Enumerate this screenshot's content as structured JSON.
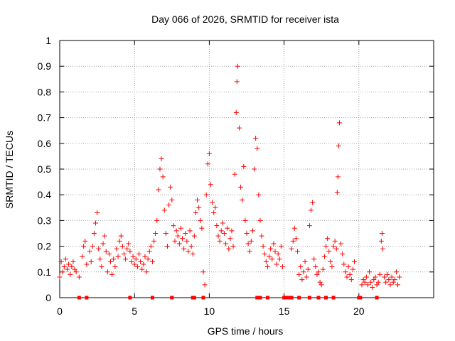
{
  "chart_data": {
    "type": "scatter",
    "title": "Day 066 of 2026, SRMTID for receiver ista",
    "xlabel": "GPS time / hours",
    "ylabel": "SRMTID / TECUs",
    "xlim": [
      0,
      25
    ],
    "ylim": [
      0,
      1
    ],
    "xticks": [
      0,
      5,
      10,
      15,
      20
    ],
    "xtick_labels": [
      "0",
      "5",
      "10",
      "15",
      "20"
    ],
    "yticks": [
      0,
      0.1,
      0.2,
      0.3,
      0.4,
      0.5,
      0.6,
      0.7,
      0.8,
      0.9,
      1
    ],
    "ytick_labels": [
      "0",
      "0.1",
      "0.2",
      "0.3",
      "0.4",
      "0.5",
      "0.6",
      "0.7",
      "0.8",
      "0.9",
      "1"
    ],
    "grid": true,
    "marker": "+",
    "series_color": "#ff0000",
    "series": [
      {
        "name": "SRMTID",
        "points": [
          [
            0.0,
            0.08
          ],
          [
            0.1,
            0.14
          ],
          [
            0.2,
            0.1
          ],
          [
            0.3,
            0.12
          ],
          [
            0.4,
            0.15
          ],
          [
            0.5,
            0.11
          ],
          [
            0.6,
            0.13
          ],
          [
            0.7,
            0.09
          ],
          [
            0.8,
            0.12
          ],
          [
            0.9,
            0.14
          ],
          [
            1.0,
            0.11
          ],
          [
            1.1,
            0.1
          ],
          [
            1.3,
            0.08
          ],
          [
            1.5,
            0.16
          ],
          [
            1.6,
            0.2
          ],
          [
            1.7,
            0.22
          ],
          [
            1.8,
            0.13
          ],
          [
            2.0,
            0.18
          ],
          [
            2.1,
            0.14
          ],
          [
            2.2,
            0.2
          ],
          [
            2.3,
            0.25
          ],
          [
            2.4,
            0.29
          ],
          [
            2.5,
            0.33
          ],
          [
            2.6,
            0.19
          ],
          [
            2.7,
            0.15
          ],
          [
            2.8,
            0.12
          ],
          [
            2.9,
            0.21
          ],
          [
            3.0,
            0.24
          ],
          [
            3.1,
            0.18
          ],
          [
            3.2,
            0.1
          ],
          [
            3.3,
            0.17
          ],
          [
            3.4,
            0.14
          ],
          [
            3.5,
            0.09
          ],
          [
            3.6,
            0.15
          ],
          [
            3.7,
            0.12
          ],
          [
            3.8,
            0.19
          ],
          [
            3.9,
            0.16
          ],
          [
            4.0,
            0.22
          ],
          [
            4.1,
            0.24
          ],
          [
            4.2,
            0.2
          ],
          [
            4.3,
            0.17
          ],
          [
            4.4,
            0.15
          ],
          [
            4.5,
            0.19
          ],
          [
            4.6,
            0.21
          ],
          [
            4.7,
            0.18
          ],
          [
            4.8,
            0.14
          ],
          [
            4.9,
            0.16
          ],
          [
            5.0,
            0.13
          ],
          [
            5.1,
            0.15
          ],
          [
            5.2,
            0.12
          ],
          [
            5.3,
            0.17
          ],
          [
            5.4,
            0.14
          ],
          [
            5.5,
            0.11
          ],
          [
            5.6,
            0.13
          ],
          [
            5.7,
            0.16
          ],
          [
            5.8,
            0.1
          ],
          [
            5.9,
            0.15
          ],
          [
            6.0,
            0.18
          ],
          [
            6.1,
            0.2
          ],
          [
            6.2,
            0.14
          ],
          [
            6.3,
            0.22
          ],
          [
            6.4,
            0.25
          ],
          [
            6.5,
            0.3
          ],
          [
            6.6,
            0.42
          ],
          [
            6.7,
            0.5
          ],
          [
            6.8,
            0.54
          ],
          [
            6.9,
            0.47
          ],
          [
            7.0,
            0.34
          ],
          [
            7.1,
            0.25
          ],
          [
            7.2,
            0.2
          ],
          [
            7.3,
            0.36
          ],
          [
            7.4,
            0.43
          ],
          [
            7.5,
            0.38
          ],
          [
            7.6,
            0.28
          ],
          [
            7.7,
            0.22
          ],
          [
            7.8,
            0.26
          ],
          [
            7.9,
            0.24
          ],
          [
            8.0,
            0.21
          ],
          [
            8.1,
            0.27
          ],
          [
            8.2,
            0.23
          ],
          [
            8.3,
            0.19
          ],
          [
            8.4,
            0.25
          ],
          [
            8.5,
            0.22
          ],
          [
            8.6,
            0.18
          ],
          [
            8.7,
            0.26
          ],
          [
            8.8,
            0.2
          ],
          [
            8.9,
            0.17
          ],
          [
            9.0,
            0.24
          ],
          [
            9.1,
            0.33
          ],
          [
            9.2,
            0.38
          ],
          [
            9.3,
            0.35
          ],
          [
            9.4,
            0.3
          ],
          [
            9.5,
            0.27
          ],
          [
            9.6,
            0.1
          ],
          [
            9.7,
            0.05
          ],
          [
            9.8,
            0.4
          ],
          [
            9.9,
            0.52
          ],
          [
            10.0,
            0.56
          ],
          [
            10.1,
            0.44
          ],
          [
            10.2,
            0.37
          ],
          [
            10.3,
            0.33
          ],
          [
            10.4,
            0.35
          ],
          [
            10.5,
            0.28
          ],
          [
            10.6,
            0.24
          ],
          [
            10.7,
            0.22
          ],
          [
            10.8,
            0.26
          ],
          [
            10.9,
            0.29
          ],
          [
            11.0,
            0.25
          ],
          [
            11.1,
            0.21
          ],
          [
            11.2,
            0.27
          ],
          [
            11.3,
            0.19
          ],
          [
            11.4,
            0.23
          ],
          [
            11.5,
            0.26
          ],
          [
            11.6,
            0.2
          ],
          [
            11.7,
            0.48
          ],
          [
            11.8,
            0.72
          ],
          [
            11.85,
            0.84
          ],
          [
            11.9,
            0.9
          ],
          [
            12.0,
            0.66
          ],
          [
            12.1,
            0.43
          ],
          [
            12.2,
            0.38
          ],
          [
            12.3,
            0.51
          ],
          [
            12.4,
            0.3
          ],
          [
            12.5,
            0.25
          ],
          [
            12.6,
            0.21
          ],
          [
            12.7,
            0.18
          ],
          [
            12.8,
            0.22
          ],
          [
            12.9,
            0.26
          ],
          [
            13.0,
            0.5
          ],
          [
            13.1,
            0.62
          ],
          [
            13.2,
            0.58
          ],
          [
            13.3,
            0.4
          ],
          [
            13.4,
            0.3
          ],
          [
            13.5,
            0.24
          ],
          [
            13.6,
            0.2
          ],
          [
            13.7,
            0.17
          ],
          [
            13.8,
            0.14
          ],
          [
            13.9,
            0.12
          ],
          [
            14.0,
            0.16
          ],
          [
            14.1,
            0.19
          ],
          [
            14.2,
            0.15
          ],
          [
            14.3,
            0.21
          ],
          [
            14.4,
            0.18
          ],
          [
            14.5,
            0.13
          ],
          [
            14.6,
            0.17
          ],
          [
            14.7,
            0.15
          ],
          [
            14.8,
            0.2
          ],
          [
            14.9,
            0.12
          ],
          [
            15.5,
            0.19
          ],
          [
            15.6,
            0.22
          ],
          [
            15.7,
            0.27
          ],
          [
            15.8,
            0.23
          ],
          [
            15.9,
            0.18
          ],
          [
            16.0,
            0.09
          ],
          [
            16.1,
            0.12
          ],
          [
            16.2,
            0.07
          ],
          [
            16.3,
            0.1
          ],
          [
            16.4,
            0.14
          ],
          [
            16.5,
            0.08
          ],
          [
            16.6,
            0.11
          ],
          [
            16.7,
            0.28
          ],
          [
            16.8,
            0.34
          ],
          [
            16.9,
            0.37
          ],
          [
            17.0,
            0.15
          ],
          [
            17.1,
            0.12
          ],
          [
            17.2,
            0.09
          ],
          [
            17.3,
            0.1
          ],
          [
            17.4,
            0.06
          ],
          [
            17.5,
            0.05
          ],
          [
            17.6,
            0.11
          ],
          [
            17.7,
            0.16
          ],
          [
            17.8,
            0.2
          ],
          [
            17.9,
            0.23
          ],
          [
            18.0,
            0.18
          ],
          [
            18.1,
            0.14
          ],
          [
            18.2,
            0.12
          ],
          [
            18.3,
            0.2
          ],
          [
            18.4,
            0.22
          ],
          [
            18.5,
            0.19
          ],
          [
            18.55,
            0.41
          ],
          [
            18.6,
            0.47
          ],
          [
            18.65,
            0.59
          ],
          [
            18.7,
            0.68
          ],
          [
            18.8,
            0.21
          ],
          [
            18.9,
            0.17
          ],
          [
            19.0,
            0.13
          ],
          [
            19.1,
            0.1
          ],
          [
            19.2,
            0.08
          ],
          [
            19.3,
            0.12
          ],
          [
            19.4,
            0.09
          ],
          [
            19.5,
            0.07
          ],
          [
            19.6,
            0.11
          ],
          [
            19.7,
            0.14
          ],
          [
            20.2,
            0.05
          ],
          [
            20.3,
            0.07
          ],
          [
            20.4,
            0.06
          ],
          [
            20.5,
            0.08
          ],
          [
            20.6,
            0.05
          ],
          [
            20.7,
            0.1
          ],
          [
            20.8,
            0.06
          ],
          [
            20.9,
            0.04
          ],
          [
            21.0,
            0.07
          ],
          [
            21.1,
            0.08
          ],
          [
            21.2,
            0.05
          ],
          [
            21.3,
            0.06
          ],
          [
            21.4,
            0.09
          ],
          [
            21.5,
            0.22
          ],
          [
            21.55,
            0.25
          ],
          [
            21.6,
            0.19
          ],
          [
            21.7,
            0.08
          ],
          [
            21.8,
            0.06
          ],
          [
            21.9,
            0.09
          ],
          [
            22.0,
            0.07
          ],
          [
            22.1,
            0.05
          ],
          [
            22.2,
            0.08
          ],
          [
            22.3,
            0.06
          ],
          [
            22.4,
            0.07
          ],
          [
            22.5,
            0.1
          ],
          [
            22.6,
            0.05
          ],
          [
            22.7,
            0.08
          ]
        ]
      }
    ],
    "baseline_marks_x": [
      1.3,
      1.8,
      4.7,
      6.2,
      7.5,
      8.9,
      9.0,
      9.6,
      13.2,
      13.4,
      13.9,
      15.0,
      15.1,
      15.2,
      15.3,
      15.5,
      16.0,
      16.7,
      17.3,
      17.8,
      18.3,
      20.0,
      20.1,
      21.2
    ]
  }
}
